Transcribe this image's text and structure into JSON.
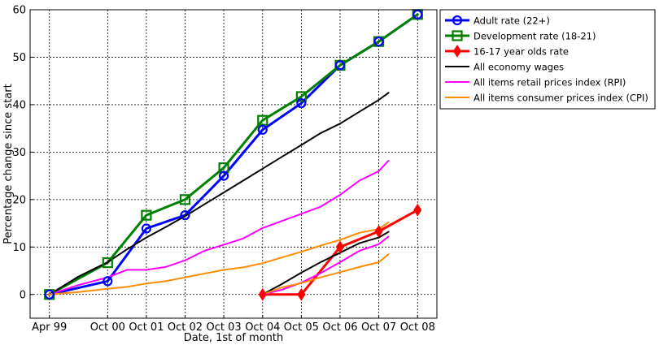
{
  "chart_data": {
    "type": "line",
    "title": "",
    "xlabel": "Date, 1st of month",
    "ylabel": "Percentage change since start",
    "xlim": [
      "1998-10-01",
      "2009-04-01"
    ],
    "ylim": [
      -5,
      60
    ],
    "xticks": [
      {
        "date": "1999-04-01",
        "label": "Apr 99"
      },
      {
        "date": "2000-10-01",
        "label": "Oct 00"
      },
      {
        "date": "2001-10-01",
        "label": "Oct 01"
      },
      {
        "date": "2002-10-01",
        "label": "Oct 02"
      },
      {
        "date": "2003-10-01",
        "label": "Oct 03"
      },
      {
        "date": "2004-10-01",
        "label": "Oct 04"
      },
      {
        "date": "2005-10-01",
        "label": "Oct 05"
      },
      {
        "date": "2006-10-01",
        "label": "Oct 06"
      },
      {
        "date": "2007-10-01",
        "label": "Oct 07"
      },
      {
        "date": "2008-10-01",
        "label": "Oct 08"
      }
    ],
    "yticks": [
      0,
      10,
      20,
      30,
      40,
      50,
      60
    ],
    "grid": true,
    "legend_position": "top-right-outside",
    "series": [
      {
        "name": "Adult rate (22+)",
        "color": "#0000ff",
        "marker": "circle",
        "points": [
          [
            "1999-04-01",
            0
          ],
          [
            "2000-10-01",
            2.8
          ],
          [
            "2001-10-01",
            13.9
          ],
          [
            "2002-10-01",
            16.7
          ],
          [
            "2003-10-01",
            25
          ],
          [
            "2004-10-01",
            34.7
          ],
          [
            "2005-10-01",
            40.3
          ],
          [
            "2006-10-01",
            48.3
          ],
          [
            "2007-10-01",
            53.3
          ],
          [
            "2008-10-01",
            59
          ]
        ]
      },
      {
        "name": "Development rate (18-21)",
        "color": "#008000",
        "marker": "square",
        "points": [
          [
            "1999-04-01",
            0
          ],
          [
            "2000-10-01",
            6.7
          ],
          [
            "2001-10-01",
            16.7
          ],
          [
            "2002-10-01",
            20
          ],
          [
            "2003-10-01",
            26.7
          ],
          [
            "2004-10-01",
            36.7
          ],
          [
            "2005-10-01",
            41.7
          ],
          [
            "2006-10-01",
            48.3
          ],
          [
            "2007-10-01",
            53.3
          ],
          [
            "2008-10-01",
            59
          ]
        ]
      },
      {
        "name": "16-17 year olds rate",
        "color": "#ff0000",
        "marker": "diamond",
        "points": [
          [
            "2004-10-01",
            0
          ],
          [
            "2005-10-01",
            0
          ],
          [
            "2006-10-01",
            10
          ],
          [
            "2007-10-01",
            13.3
          ],
          [
            "2008-10-01",
            17.8
          ]
        ]
      },
      {
        "name": "All economy wages",
        "color": "#000000",
        "marker": "none",
        "points": [
          [
            "1999-04-01",
            0
          ],
          [
            "2000-01-01",
            3.8
          ],
          [
            "2000-10-01",
            6.8
          ],
          [
            "2001-04-01",
            9.5
          ],
          [
            "2001-10-01",
            12
          ],
          [
            "2002-04-01",
            14.2
          ],
          [
            "2002-10-01",
            16.5
          ],
          [
            "2003-04-01",
            19
          ],
          [
            "2003-10-01",
            21.5
          ],
          [
            "2004-04-01",
            24
          ],
          [
            "2004-10-01",
            26.5
          ],
          [
            "2005-04-01",
            29
          ],
          [
            "2005-10-01",
            31.5
          ],
          [
            "2006-04-01",
            34
          ],
          [
            "2006-10-01",
            36
          ],
          [
            "2007-04-01",
            38.5
          ],
          [
            "2007-10-01",
            41
          ],
          [
            "2008-01-01",
            42.5
          ]
        ]
      },
      {
        "name": "All items retail prices index (RPI)",
        "color": "#ff00ff",
        "marker": "none",
        "points": [
          [
            "1999-04-01",
            0
          ],
          [
            "2000-01-01",
            2
          ],
          [
            "2000-10-01",
            3.6
          ],
          [
            "2001-04-01",
            5.2
          ],
          [
            "2001-10-01",
            5.2
          ],
          [
            "2002-04-01",
            5.8
          ],
          [
            "2002-10-01",
            7.2
          ],
          [
            "2003-04-01",
            9.2
          ],
          [
            "2003-10-01",
            10.5
          ],
          [
            "2004-04-01",
            11.8
          ],
          [
            "2004-10-01",
            14
          ],
          [
            "2005-04-01",
            15.5
          ],
          [
            "2005-10-01",
            17
          ],
          [
            "2006-04-01",
            18.5
          ],
          [
            "2006-10-01",
            21
          ],
          [
            "2007-04-01",
            24
          ],
          [
            "2007-10-01",
            26
          ],
          [
            "2008-01-01",
            28.2
          ]
        ]
      },
      {
        "name": "All items consumer prices index (CPI)",
        "color": "#ff8c00",
        "marker": "none",
        "points": [
          [
            "1999-04-01",
            0
          ],
          [
            "2000-01-01",
            0.5
          ],
          [
            "2000-10-01",
            1.2
          ],
          [
            "2001-04-01",
            1.6
          ],
          [
            "2001-10-01",
            2.3
          ],
          [
            "2002-04-01",
            2.8
          ],
          [
            "2002-10-01",
            3.6
          ],
          [
            "2003-04-01",
            4.4
          ],
          [
            "2003-10-01",
            5.2
          ],
          [
            "2004-04-01",
            5.7
          ],
          [
            "2004-10-01",
            6.6
          ],
          [
            "2005-04-01",
            7.8
          ],
          [
            "2005-10-01",
            9
          ],
          [
            "2006-04-01",
            10.3
          ],
          [
            "2006-10-01",
            11.5
          ],
          [
            "2007-04-01",
            13
          ],
          [
            "2007-10-01",
            13.8
          ],
          [
            "2008-01-01",
            15.2
          ]
        ]
      },
      {
        "name": "",
        "color": "#000000",
        "marker": "none",
        "points": [
          [
            "2004-10-01",
            0
          ],
          [
            "2005-04-01",
            2.2
          ],
          [
            "2005-10-01",
            4.6
          ],
          [
            "2006-04-01",
            6.8
          ],
          [
            "2006-10-01",
            8.8
          ],
          [
            "2007-04-01",
            10.8
          ],
          [
            "2007-10-01",
            12
          ],
          [
            "2008-01-01",
            13.2
          ]
        ]
      },
      {
        "name": "",
        "color": "#ff00ff",
        "marker": "none",
        "points": [
          [
            "2004-10-01",
            0
          ],
          [
            "2005-04-01",
            1
          ],
          [
            "2005-10-01",
            2.5
          ],
          [
            "2006-04-01",
            4.5
          ],
          [
            "2006-10-01",
            6.8
          ],
          [
            "2007-04-01",
            9.2
          ],
          [
            "2007-10-01",
            10.6
          ],
          [
            "2008-01-01",
            12.2
          ]
        ]
      },
      {
        "name": "",
        "color": "#ff8c00",
        "marker": "none",
        "points": [
          [
            "2004-10-01",
            0
          ],
          [
            "2005-04-01",
            1.5
          ],
          [
            "2005-10-01",
            2.4
          ],
          [
            "2006-04-01",
            3.6
          ],
          [
            "2006-10-01",
            4.7
          ],
          [
            "2007-04-01",
            5.8
          ],
          [
            "2007-10-01",
            6.8
          ],
          [
            "2008-01-01",
            8.5
          ]
        ]
      }
    ]
  }
}
